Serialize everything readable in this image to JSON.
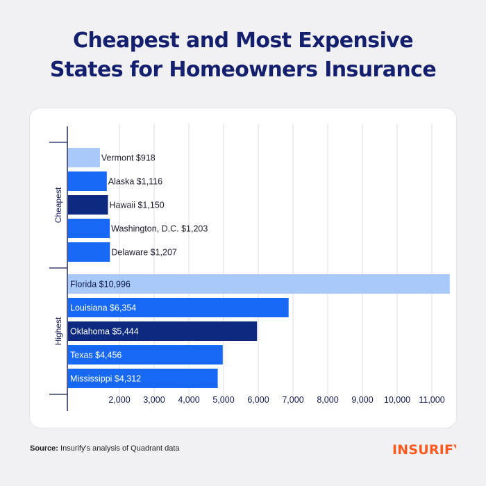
{
  "title_line1": "Cheapest and Most Expensive",
  "title_line2": "States for Homeowners Insurance",
  "source_label": "Source:",
  "source_text": "Insurify's analysis of Quadrant data",
  "brand": "INSURIFY",
  "colors": {
    "title": "#14206e",
    "light_blue": "#a9c9fb",
    "blue": "#1769f5",
    "navy": "#0d2a80",
    "axis": "#121a56",
    "grid": "#dcdce2",
    "brand": "#ff5a1f"
  },
  "chart_data": {
    "type": "bar",
    "orientation": "horizontal",
    "xlim": [
      1000,
      11000
    ],
    "xticks": [
      2000,
      3000,
      4000,
      5000,
      6000,
      7000,
      8000,
      9000,
      10000,
      11000
    ],
    "xtick_labels": [
      "2,000",
      "3,000",
      "4,000",
      "5,000",
      "6,000",
      "7,000",
      "8,000",
      "9,000",
      "10,000",
      "11,000"
    ],
    "grid": "vertical",
    "groups": [
      {
        "name": "Cheapest",
        "bars": [
          {
            "label": "Vermont $918",
            "state": "Vermont",
            "value": 918,
            "color": "light_blue"
          },
          {
            "label": "Alaska $1,116",
            "state": "Alaska",
            "value": 1116,
            "color": "blue"
          },
          {
            "label": "Hawaii $1,150",
            "state": "Hawaii",
            "value": 1150,
            "color": "navy"
          },
          {
            "label": "Washington, D.C. $1,203",
            "state": "Washington, D.C.",
            "value": 1203,
            "color": "blue"
          },
          {
            "label": "Delaware $1,207",
            "state": "Delaware",
            "value": 1207,
            "color": "blue"
          }
        ]
      },
      {
        "name": "Highest",
        "bars": [
          {
            "label": "Florida $10,996",
            "state": "Florida",
            "value": 10996,
            "color": "light_blue"
          },
          {
            "label": "Louisiana $6,354",
            "state": "Louisiana",
            "value": 6354,
            "color": "blue"
          },
          {
            "label": "Oklahoma $5,444",
            "state": "Oklahoma",
            "value": 5444,
            "color": "navy"
          },
          {
            "label": "Texas $4,456",
            "state": "Texas",
            "value": 4456,
            "color": "blue"
          },
          {
            "label": "Mississippi $4,312",
            "state": "Mississippi",
            "value": 4312,
            "color": "blue"
          }
        ]
      }
    ]
  }
}
